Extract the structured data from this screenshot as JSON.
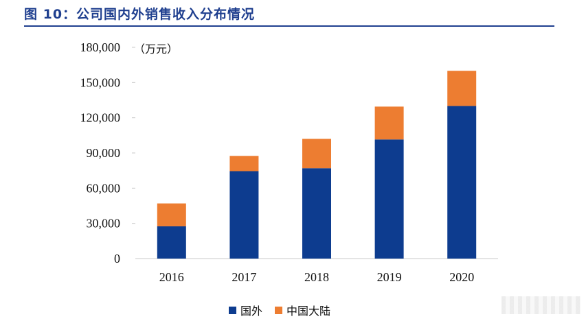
{
  "figure": {
    "title": "图 10：公司国内外销售收入分布情况",
    "unit_label": "（万元）"
  },
  "colors": {
    "title": "#1f3f8f",
    "series_overseas": "#0d3c8f",
    "series_mainland": "#ed7d31"
  },
  "chart_data": {
    "type": "bar",
    "stacked": true,
    "categories": [
      "2016",
      "2017",
      "2018",
      "2019",
      "2020"
    ],
    "series": [
      {
        "name": "国外",
        "values": [
          27500,
          74500,
          77000,
          101500,
          130000
        ],
        "color": "#0d3c8f"
      },
      {
        "name": "中国大陆",
        "values": [
          19500,
          13000,
          25000,
          28000,
          30000
        ],
        "color": "#ed7d31"
      }
    ],
    "ylim": [
      0,
      180000
    ],
    "yticks": [
      0,
      30000,
      60000,
      90000,
      120000,
      150000,
      180000
    ],
    "ytick_labels": [
      "0",
      "30,000",
      "60,000",
      "90,000",
      "120,000",
      "150,000",
      "180,000"
    ],
    "legend_position": "bottom",
    "grid": false
  }
}
